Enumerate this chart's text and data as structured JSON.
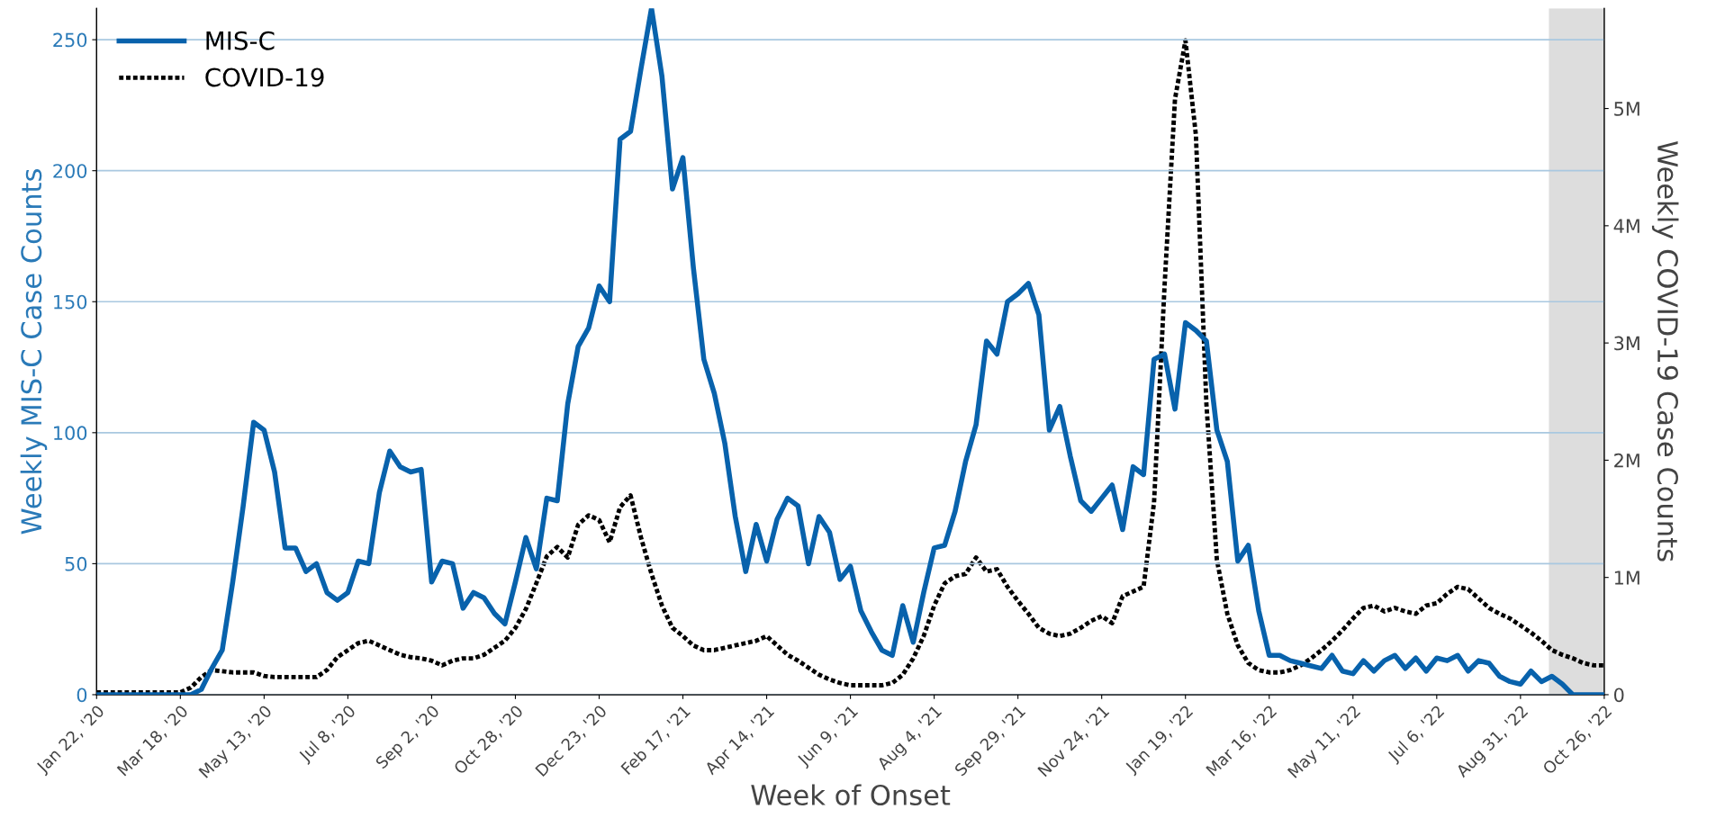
{
  "chart_data": {
    "type": "line",
    "xlabel": "Week of Onset",
    "ylabel": "Weekly MIS-C Case Counts",
    "y2label": "Weekly COVID-19 Case Counts",
    "x": [
      "2020-01-22",
      "2020-01-29",
      "2020-02-05",
      "2020-02-12",
      "2020-02-19",
      "2020-02-26",
      "2020-03-04",
      "2020-03-11",
      "2020-03-18",
      "2020-03-25",
      "2020-04-01",
      "2020-04-08",
      "2020-04-15",
      "2020-04-22",
      "2020-04-29",
      "2020-05-06",
      "2020-05-13",
      "2020-05-20",
      "2020-05-27",
      "2020-06-03",
      "2020-06-10",
      "2020-06-17",
      "2020-06-24",
      "2020-07-01",
      "2020-07-08",
      "2020-07-15",
      "2020-07-22",
      "2020-07-29",
      "2020-08-05",
      "2020-08-12",
      "2020-08-19",
      "2020-08-26",
      "2020-09-02",
      "2020-09-09",
      "2020-09-16",
      "2020-09-23",
      "2020-09-30",
      "2020-10-07",
      "2020-10-14",
      "2020-10-21",
      "2020-10-28",
      "2020-11-04",
      "2020-11-11",
      "2020-11-18",
      "2020-11-25",
      "2020-12-02",
      "2020-12-09",
      "2020-12-16",
      "2020-12-23",
      "2020-12-30",
      "2021-01-06",
      "2021-01-13",
      "2021-01-20",
      "2021-01-27",
      "2021-02-03",
      "2021-02-10",
      "2021-02-17",
      "2021-02-24",
      "2021-03-03",
      "2021-03-10",
      "2021-03-17",
      "2021-03-24",
      "2021-03-31",
      "2021-04-07",
      "2021-04-14",
      "2021-04-21",
      "2021-04-28",
      "2021-05-05",
      "2021-05-12",
      "2021-05-19",
      "2021-05-26",
      "2021-06-02",
      "2021-06-09",
      "2021-06-16",
      "2021-06-23",
      "2021-06-30",
      "2021-07-07",
      "2021-07-14",
      "2021-07-21",
      "2021-07-28",
      "2021-08-04",
      "2021-08-11",
      "2021-08-18",
      "2021-08-25",
      "2021-09-01",
      "2021-09-08",
      "2021-09-15",
      "2021-09-22",
      "2021-09-29",
      "2021-10-06",
      "2021-10-13",
      "2021-10-20",
      "2021-10-27",
      "2021-11-03",
      "2021-11-10",
      "2021-11-17",
      "2021-11-24",
      "2021-12-01",
      "2021-12-08",
      "2021-12-15",
      "2021-12-22",
      "2021-12-29",
      "2022-01-05",
      "2022-01-12",
      "2022-01-19",
      "2022-01-26",
      "2022-02-02",
      "2022-02-09",
      "2022-02-16",
      "2022-02-23",
      "2022-03-02",
      "2022-03-09",
      "2022-03-16",
      "2022-03-23",
      "2022-03-30",
      "2022-04-06",
      "2022-04-13",
      "2022-04-20",
      "2022-04-27",
      "2022-05-04",
      "2022-05-11",
      "2022-05-18",
      "2022-05-25",
      "2022-06-01",
      "2022-06-08",
      "2022-06-15",
      "2022-06-22",
      "2022-06-29",
      "2022-07-06",
      "2022-07-13",
      "2022-07-20",
      "2022-07-27",
      "2022-08-03",
      "2022-08-10",
      "2022-08-17",
      "2022-08-24",
      "2022-08-31",
      "2022-09-07",
      "2022-09-14",
      "2022-09-21",
      "2022-09-28",
      "2022-10-05",
      "2022-10-12",
      "2022-10-19",
      "2022-10-26"
    ],
    "series": [
      {
        "name": "MIS-C",
        "color": "#0862ac",
        "line_style": "solid",
        "values": [
          0,
          0,
          0,
          0,
          0,
          0,
          0,
          0,
          0,
          0,
          2,
          10,
          17,
          43,
          72,
          104,
          101,
          85,
          56,
          56,
          47,
          50,
          39,
          36,
          39,
          51,
          50,
          77,
          93,
          87,
          85,
          86,
          43,
          51,
          50,
          33,
          39,
          37,
          31,
          27,
          43,
          60,
          48,
          75,
          74,
          111,
          133,
          140,
          156,
          150,
          212,
          215,
          239,
          262,
          236,
          193,
          205,
          163,
          128,
          115,
          96,
          68,
          47,
          65,
          51,
          67,
          75,
          72,
          50,
          68,
          62,
          44,
          49,
          32,
          24,
          17,
          15,
          34,
          20,
          39,
          56,
          57,
          70,
          89,
          103,
          135,
          130,
          150,
          153,
          157,
          145,
          101,
          110,
          91,
          74,
          70,
          75,
          80,
          63,
          87,
          84,
          128,
          130,
          109,
          142,
          139,
          135,
          101,
          89,
          51,
          57,
          32,
          15,
          15,
          13,
          12,
          11,
          10,
          15,
          9,
          8,
          13,
          9,
          13,
          15,
          10,
          14,
          9,
          14,
          13,
          15,
          9,
          13,
          12,
          7,
          5,
          4,
          9,
          5,
          7,
          4,
          0,
          0,
          0,
          0
        ]
      },
      {
        "name": "COVID-19",
        "color": "#000000",
        "line_style": "dotted",
        "axis": "y2",
        "values": [
          20000,
          20000,
          20000,
          20000,
          20000,
          20000,
          20000,
          20000,
          20000,
          60000,
          150000,
          210000,
          200000,
          190000,
          190000,
          190000,
          160000,
          150000,
          150000,
          150000,
          150000,
          150000,
          210000,
          320000,
          380000,
          440000,
          460000,
          420000,
          380000,
          340000,
          320000,
          310000,
          290000,
          250000,
          290000,
          310000,
          310000,
          340000,
          400000,
          460000,
          570000,
          730000,
          950000,
          1180000,
          1260000,
          1170000,
          1450000,
          1530000,
          1490000,
          1300000,
          1600000,
          1700000,
          1340000,
          1030000,
          760000,
          570000,
          500000,
          420000,
          380000,
          380000,
          400000,
          420000,
          440000,
          460000,
          500000,
          420000,
          340000,
          290000,
          230000,
          170000,
          130000,
          100000,
          80000,
          80000,
          80000,
          80000,
          100000,
          170000,
          310000,
          500000,
          760000,
          950000,
          1010000,
          1030000,
          1170000,
          1050000,
          1070000,
          920000,
          800000,
          690000,
          570000,
          520000,
          500000,
          520000,
          570000,
          630000,
          670000,
          610000,
          840000,
          880000,
          920000,
          1640000,
          3480000,
          5080000,
          5580000,
          4770000,
          2480000,
          1150000,
          690000,
          420000,
          270000,
          210000,
          190000,
          190000,
          210000,
          250000,
          310000,
          380000,
          460000,
          550000,
          650000,
          740000,
          760000,
          710000,
          740000,
          710000,
          690000,
          760000,
          780000,
          860000,
          920000,
          900000,
          820000,
          740000,
          690000,
          650000,
          590000,
          530000,
          460000,
          380000,
          340000,
          310000,
          270000,
          250000,
          250000
        ]
      }
    ],
    "xlim": [
      "2020-01-22",
      "2022-10-26"
    ],
    "xticks": [
      {
        "value": "2020-01-22",
        "label": "Jan 22, '20"
      },
      {
        "value": "2020-03-18",
        "label": "Mar 18, '20"
      },
      {
        "value": "2020-05-13",
        "label": "May 13, '20"
      },
      {
        "value": "2020-07-08",
        "label": "Jul 8, '20"
      },
      {
        "value": "2020-09-02",
        "label": "Sep 2, '20"
      },
      {
        "value": "2020-10-28",
        "label": "Oct 28, '20"
      },
      {
        "value": "2020-12-23",
        "label": "Dec 23, '20"
      },
      {
        "value": "2021-02-17",
        "label": "Feb 17, '21"
      },
      {
        "value": "2021-04-14",
        "label": "Apr 14, '21"
      },
      {
        "value": "2021-06-09",
        "label": "Jun 9, '21"
      },
      {
        "value": "2021-08-04",
        "label": "Aug 4, '21"
      },
      {
        "value": "2021-09-29",
        "label": "Sep 29, '21"
      },
      {
        "value": "2021-11-24",
        "label": "Nov 24, '21"
      },
      {
        "value": "2022-01-19",
        "label": "Jan 19, '22"
      },
      {
        "value": "2022-03-16",
        "label": "Mar 16, '22"
      },
      {
        "value": "2022-05-11",
        "label": "May 11, '22"
      },
      {
        "value": "2022-07-06",
        "label": "Jul 6, '22"
      },
      {
        "value": "2022-08-31",
        "label": "Aug 31, '22"
      },
      {
        "value": "2022-10-26",
        "label": "Oct 26, '22"
      }
    ],
    "ylim": [
      0,
      262
    ],
    "yticks": [
      0,
      50,
      100,
      150,
      200,
      250
    ],
    "y2lim": [
      0,
      5855000
    ],
    "y2ticks": [
      0,
      {
        "value": 1000000,
        "label": "1M"
      },
      {
        "value": 2000000,
        "label": "2M"
      },
      {
        "value": 3000000,
        "label": "3M"
      },
      {
        "value": 4000000,
        "label": "4M"
      },
      {
        "value": 5000000,
        "label": "5M"
      }
    ],
    "bands": [
      {
        "axis": "x",
        "from": "2022-09-19",
        "to": "2022-10-26",
        "color": "#dddddd"
      }
    ],
    "grid": "y",
    "legend": "top left"
  }
}
